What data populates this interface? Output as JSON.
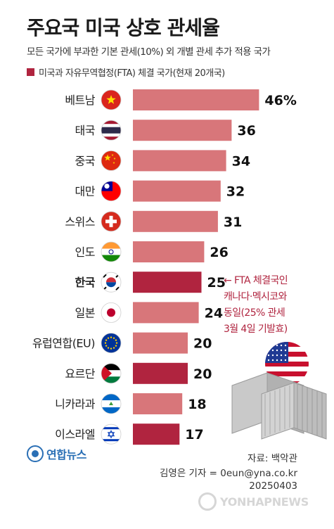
{
  "title": "주요국 미국 상호 관세율",
  "subtitle": "모든 국가에 부과한 기본 관세(10%) 외 개별 관세 추가 적용 국가",
  "legend": {
    "label": "미국과 자유무역협정(FTA) 체결 국가(현재 20개국)"
  },
  "colors": {
    "fta": "#b0243f",
    "non_fta": "#d8767a",
    "label": "#222222"
  },
  "chart_data": {
    "type": "bar",
    "orientation": "horizontal",
    "title": "주요국 미국 상호 관세율",
    "categories": [
      "베트남",
      "태국",
      "중국",
      "대만",
      "스위스",
      "인도",
      "한국",
      "일본",
      "유럽연합(EU)",
      "요르단",
      "니카라과",
      "이스라엘"
    ],
    "values": [
      46,
      36,
      34,
      32,
      31,
      26,
      25,
      24,
      20,
      20,
      18,
      17
    ],
    "value_labels": [
      "46%",
      "36",
      "34",
      "32",
      "31",
      "26",
      "25",
      "24",
      "20",
      "20",
      "18",
      "17"
    ],
    "fta": [
      false,
      false,
      false,
      false,
      false,
      false,
      true,
      false,
      false,
      true,
      false,
      true
    ],
    "highlight": [
      "한국"
    ],
    "flags": [
      "vietnam-flag-icon",
      "thailand-flag-icon",
      "china-flag-icon",
      "taiwan-flag-icon",
      "switzerland-flag-icon",
      "india-flag-icon",
      "south-korea-flag-icon",
      "japan-flag-icon",
      "eu-flag-icon",
      "jordan-flag-icon",
      "nicaragua-flag-icon",
      "israel-flag-icon"
    ],
    "xlim": [
      0,
      50
    ],
    "xlabel": "",
    "ylabel": "",
    "grid": false
  },
  "annotation": [
    "← FTA 체결국인",
    "캐나다·멕시코와",
    "동일(25% 관세",
    "3월 4일 기발효)"
  ],
  "logo": "연합뉴스",
  "source": "자료: 백악관",
  "credit": [
    "김영은 기자 = 0eun@yna.co.kr",
    "20250403"
  ],
  "watermark": "YONHAPNEWS",
  "decoration": [
    "us-flag-icon",
    "shipping-container-icon"
  ]
}
